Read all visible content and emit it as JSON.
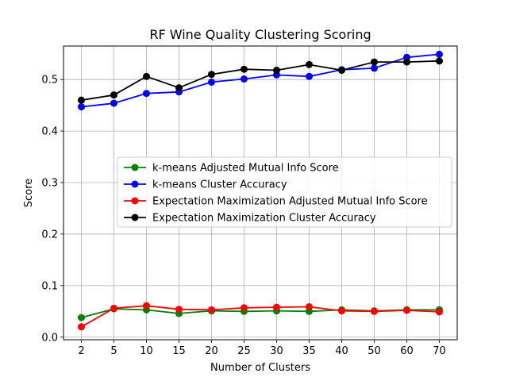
{
  "chart_data": {
    "type": "line",
    "title": "RF Wine Quality  Clustering Scoring",
    "xlabel": "Number of Clusters",
    "ylabel": "Score",
    "categories": [
      "2",
      "5",
      "10",
      "15",
      "20",
      "25",
      "30",
      "35",
      "40",
      "50",
      "60",
      "70"
    ],
    "ylim": [
      -0.005,
      0.565
    ],
    "yticks": [
      "0.0",
      "0.1",
      "0.2",
      "0.3",
      "0.4",
      "0.5"
    ],
    "grid": true,
    "legend_position": "center-right",
    "series": [
      {
        "name": "k-means Adjusted Mutual Info Score",
        "color": "#008000",
        "values": [
          0.038,
          0.055,
          0.053,
          0.046,
          0.051,
          0.05,
          0.051,
          0.05,
          0.053,
          0.051,
          0.053,
          0.053
        ]
      },
      {
        "name": "k-means Cluster Accuracy",
        "color": "#0000ff",
        "values": [
          0.447,
          0.454,
          0.473,
          0.476,
          0.495,
          0.501,
          0.509,
          0.506,
          0.519,
          0.522,
          0.543,
          0.549
        ]
      },
      {
        "name": "Expectation Maximization Adjusted Mutual Info Score",
        "color": "#ff0000",
        "values": [
          0.02,
          0.056,
          0.061,
          0.054,
          0.053,
          0.057,
          0.058,
          0.059,
          0.051,
          0.05,
          0.052,
          0.049
        ]
      },
      {
        "name": "Expectation Maximization Cluster Accuracy",
        "color": "#000000",
        "values": [
          0.46,
          0.47,
          0.506,
          0.484,
          0.51,
          0.52,
          0.518,
          0.529,
          0.518,
          0.534,
          0.534,
          0.536
        ]
      }
    ]
  }
}
